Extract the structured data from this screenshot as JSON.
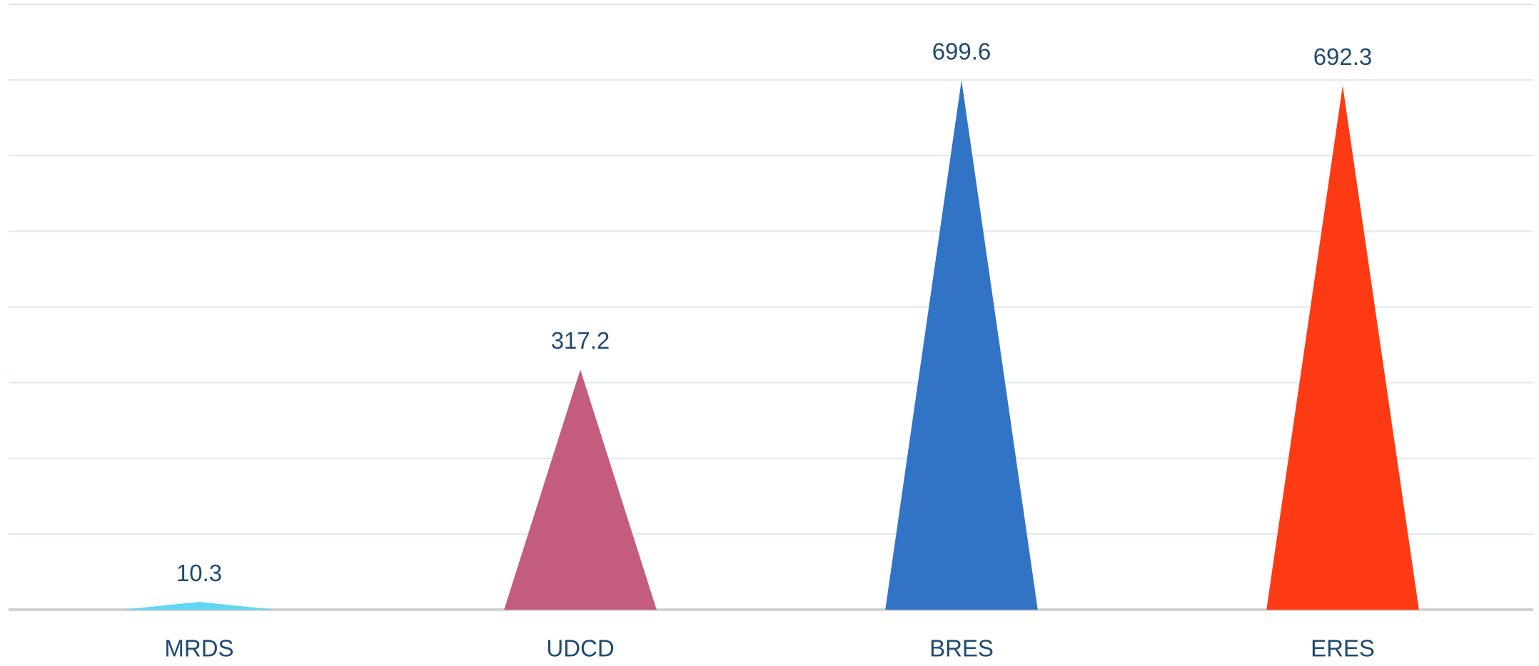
{
  "chart_data": {
    "type": "pictorial-triangle",
    "categories": [
      "MRDS",
      "UDCD",
      "BRES",
      "ERES"
    ],
    "values": [
      10.3,
      317.2,
      699.6,
      692.3
    ],
    "colors": [
      "#5fd6f2",
      "#c45c7d",
      "#3174c5",
      "#fd3a13"
    ],
    "ylim": [
      0,
      800
    ],
    "yticks": [
      0,
      100,
      200,
      300,
      400,
      500,
      600,
      700,
      800
    ],
    "grid": true
  }
}
